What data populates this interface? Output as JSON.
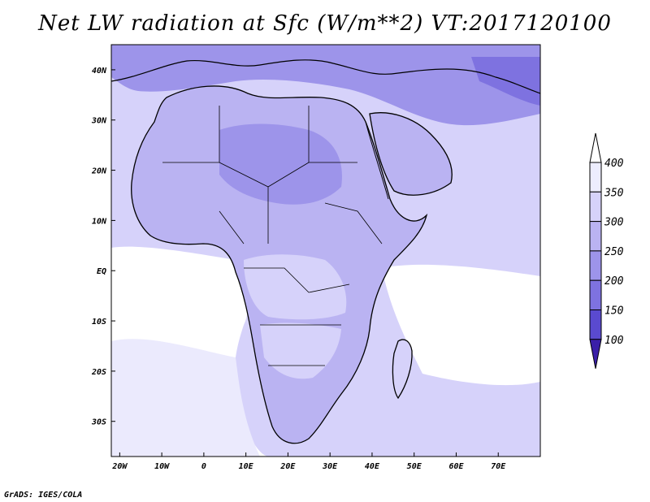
{
  "title": "Net LW radiation at Sfc (W/m**2) VT:2017120100",
  "credit": "GrADS: IGES/COLA",
  "map": {
    "lon_range": [
      -22,
      80
    ],
    "lat_range": [
      -37,
      45
    ],
    "lon_ticks": [
      "20W",
      "10W",
      "0",
      "10E",
      "20E",
      "30E",
      "40E",
      "50E",
      "60E",
      "70E"
    ],
    "lon_values": [
      -20,
      -10,
      0,
      10,
      20,
      30,
      40,
      50,
      60,
      70
    ],
    "lat_ticks": [
      "40N",
      "30N",
      "20N",
      "10N",
      "EQ",
      "10S",
      "20S",
      "30S"
    ],
    "lat_values": [
      40,
      30,
      20,
      10,
      0,
      -10,
      -20,
      -30
    ]
  },
  "colorbar": {
    "labels": [
      "100",
      "150",
      "200",
      "250",
      "300",
      "350",
      "400"
    ],
    "colors": [
      "#3a1fa8",
      "#5a4ad0",
      "#7e72e0",
      "#9d94ea",
      "#bab3f2",
      "#d6d2fa",
      "#ededfe"
    ],
    "ocean_color": "#d9d9fb",
    "clear_color": "#ffffff"
  },
  "chart_data": {
    "type": "heatmap",
    "title": "Net LW radiation at Sfc (W/m**2) VT:2017120100",
    "levels": [
      100,
      150,
      200,
      250,
      300,
      350,
      400
    ]
  }
}
